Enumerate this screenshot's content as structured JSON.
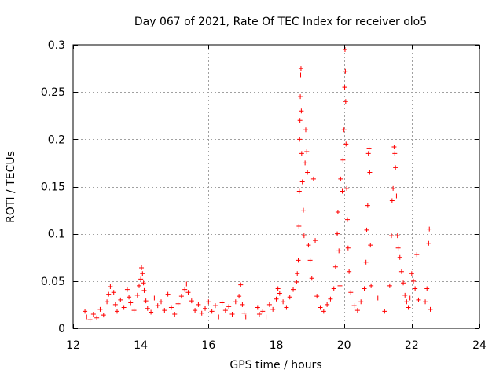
{
  "chart_data": {
    "type": "scatter",
    "title": "Day 067 of 2021, Rate Of TEC Index for receiver olo5",
    "xlabel": "GPS time / hours",
    "ylabel": "ROTI / TECUs",
    "xlim": [
      12,
      24
    ],
    "ylim": [
      0,
      0.3
    ],
    "xticks": [
      12,
      14,
      16,
      18,
      20,
      22,
      24
    ],
    "yticks": [
      0,
      0.05,
      0.1,
      0.15,
      0.2,
      0.25,
      0.3
    ],
    "xtick_labels": [
      "12",
      "14",
      "16",
      "18",
      "20",
      "22",
      "24"
    ],
    "ytick_labels": [
      "0",
      "0.05",
      "0.1",
      "0.15",
      "0.2",
      "0.25",
      "0.3"
    ],
    "grid": true,
    "marker": "+",
    "color": "#ff0000",
    "series": [
      {
        "name": "ROTI",
        "points": [
          [
            12.35,
            0.018
          ],
          [
            12.4,
            0.012
          ],
          [
            12.5,
            0.009
          ],
          [
            12.6,
            0.015
          ],
          [
            12.7,
            0.011
          ],
          [
            12.8,
            0.02
          ],
          [
            12.9,
            0.014
          ],
          [
            13.0,
            0.028
          ],
          [
            13.05,
            0.036
          ],
          [
            13.1,
            0.044
          ],
          [
            13.15,
            0.047
          ],
          [
            13.2,
            0.038
          ],
          [
            13.25,
            0.025
          ],
          [
            13.3,
            0.018
          ],
          [
            13.4,
            0.03
          ],
          [
            13.5,
            0.022
          ],
          [
            13.6,
            0.041
          ],
          [
            13.65,
            0.033
          ],
          [
            13.7,
            0.027
          ],
          [
            13.8,
            0.019
          ],
          [
            13.9,
            0.035
          ],
          [
            13.95,
            0.045
          ],
          [
            14.0,
            0.052
          ],
          [
            14.02,
            0.064
          ],
          [
            14.05,
            0.058
          ],
          [
            14.08,
            0.048
          ],
          [
            14.1,
            0.04
          ],
          [
            14.15,
            0.029
          ],
          [
            14.2,
            0.021
          ],
          [
            14.3,
            0.017
          ],
          [
            14.4,
            0.032
          ],
          [
            14.5,
            0.024
          ],
          [
            14.6,
            0.028
          ],
          [
            14.7,
            0.019
          ],
          [
            14.8,
            0.036
          ],
          [
            14.9,
            0.022
          ],
          [
            15.0,
            0.015
          ],
          [
            15.1,
            0.026
          ],
          [
            15.2,
            0.034
          ],
          [
            15.3,
            0.041
          ],
          [
            15.35,
            0.047
          ],
          [
            15.4,
            0.038
          ],
          [
            15.5,
            0.029
          ],
          [
            15.6,
            0.019
          ],
          [
            15.7,
            0.025
          ],
          [
            15.8,
            0.016
          ],
          [
            15.9,
            0.021
          ],
          [
            16.0,
            0.028
          ],
          [
            16.1,
            0.018
          ],
          [
            16.2,
            0.024
          ],
          [
            16.3,
            0.012
          ],
          [
            16.4,
            0.027
          ],
          [
            16.5,
            0.019
          ],
          [
            16.6,
            0.023
          ],
          [
            16.7,
            0.015
          ],
          [
            16.8,
            0.028
          ],
          [
            16.9,
            0.034
          ],
          [
            16.95,
            0.046
          ],
          [
            17.0,
            0.025
          ],
          [
            17.05,
            0.016
          ],
          [
            17.1,
            0.012
          ],
          [
            17.45,
            0.022
          ],
          [
            17.5,
            0.015
          ],
          [
            17.6,
            0.018
          ],
          [
            17.7,
            0.012
          ],
          [
            17.8,
            0.025
          ],
          [
            17.9,
            0.02
          ],
          [
            18.0,
            0.031
          ],
          [
            18.05,
            0.042
          ],
          [
            18.1,
            0.037
          ],
          [
            18.2,
            0.028
          ],
          [
            18.3,
            0.022
          ],
          [
            18.4,
            0.033
          ],
          [
            18.5,
            0.041
          ],
          [
            18.6,
            0.049
          ],
          [
            18.62,
            0.058
          ],
          [
            18.65,
            0.072
          ],
          [
            18.67,
            0.108
          ],
          [
            18.68,
            0.145
          ],
          [
            18.69,
            0.2
          ],
          [
            18.7,
            0.22
          ],
          [
            18.71,
            0.245
          ],
          [
            18.72,
            0.268
          ],
          [
            18.73,
            0.275
          ],
          [
            18.74,
            0.23
          ],
          [
            18.75,
            0.185
          ],
          [
            18.77,
            0.155
          ],
          [
            18.8,
            0.125
          ],
          [
            18.82,
            0.098
          ],
          [
            18.85,
            0.175
          ],
          [
            18.87,
            0.21
          ],
          [
            18.9,
            0.187
          ],
          [
            18.92,
            0.165
          ],
          [
            18.95,
            0.088
          ],
          [
            19.0,
            0.072
          ],
          [
            19.05,
            0.053
          ],
          [
            19.1,
            0.158
          ],
          [
            19.15,
            0.093
          ],
          [
            19.2,
            0.034
          ],
          [
            19.3,
            0.022
          ],
          [
            19.4,
            0.018
          ],
          [
            19.5,
            0.025
          ],
          [
            19.6,
            0.031
          ],
          [
            19.7,
            0.042
          ],
          [
            19.75,
            0.065
          ],
          [
            19.8,
            0.1
          ],
          [
            19.82,
            0.123
          ],
          [
            19.85,
            0.082
          ],
          [
            19.88,
            0.045
          ],
          [
            19.9,
            0.158
          ],
          [
            19.95,
            0.145
          ],
          [
            19.97,
            0.178
          ],
          [
            20.0,
            0.21
          ],
          [
            20.02,
            0.255
          ],
          [
            20.03,
            0.295
          ],
          [
            20.04,
            0.272
          ],
          [
            20.05,
            0.24
          ],
          [
            20.06,
            0.195
          ],
          [
            20.08,
            0.148
          ],
          [
            20.1,
            0.115
          ],
          [
            20.12,
            0.085
          ],
          [
            20.15,
            0.06
          ],
          [
            20.2,
            0.038
          ],
          [
            20.3,
            0.024
          ],
          [
            20.4,
            0.019
          ],
          [
            20.5,
            0.028
          ],
          [
            20.6,
            0.042
          ],
          [
            20.65,
            0.07
          ],
          [
            20.67,
            0.104
          ],
          [
            20.7,
            0.13
          ],
          [
            20.72,
            0.185
          ],
          [
            20.74,
            0.19
          ],
          [
            20.76,
            0.165
          ],
          [
            20.78,
            0.088
          ],
          [
            20.8,
            0.045
          ],
          [
            21.0,
            0.032
          ],
          [
            21.2,
            0.018
          ],
          [
            21.35,
            0.045
          ],
          [
            21.4,
            0.098
          ],
          [
            21.42,
            0.135
          ],
          [
            21.45,
            0.148
          ],
          [
            21.48,
            0.192
          ],
          [
            21.5,
            0.185
          ],
          [
            21.52,
            0.17
          ],
          [
            21.55,
            0.14
          ],
          [
            21.58,
            0.098
          ],
          [
            21.6,
            0.085
          ],
          [
            21.65,
            0.075
          ],
          [
            21.7,
            0.06
          ],
          [
            21.75,
            0.048
          ],
          [
            21.8,
            0.035
          ],
          [
            21.85,
            0.028
          ],
          [
            21.9,
            0.022
          ],
          [
            21.95,
            0.032
          ],
          [
            22.0,
            0.058
          ],
          [
            22.05,
            0.05
          ],
          [
            22.1,
            0.042
          ],
          [
            22.15,
            0.078
          ],
          [
            22.2,
            0.03
          ],
          [
            22.4,
            0.028
          ],
          [
            22.45,
            0.042
          ],
          [
            22.5,
            0.09
          ],
          [
            22.52,
            0.105
          ],
          [
            22.55,
            0.02
          ]
        ]
      }
    ]
  }
}
